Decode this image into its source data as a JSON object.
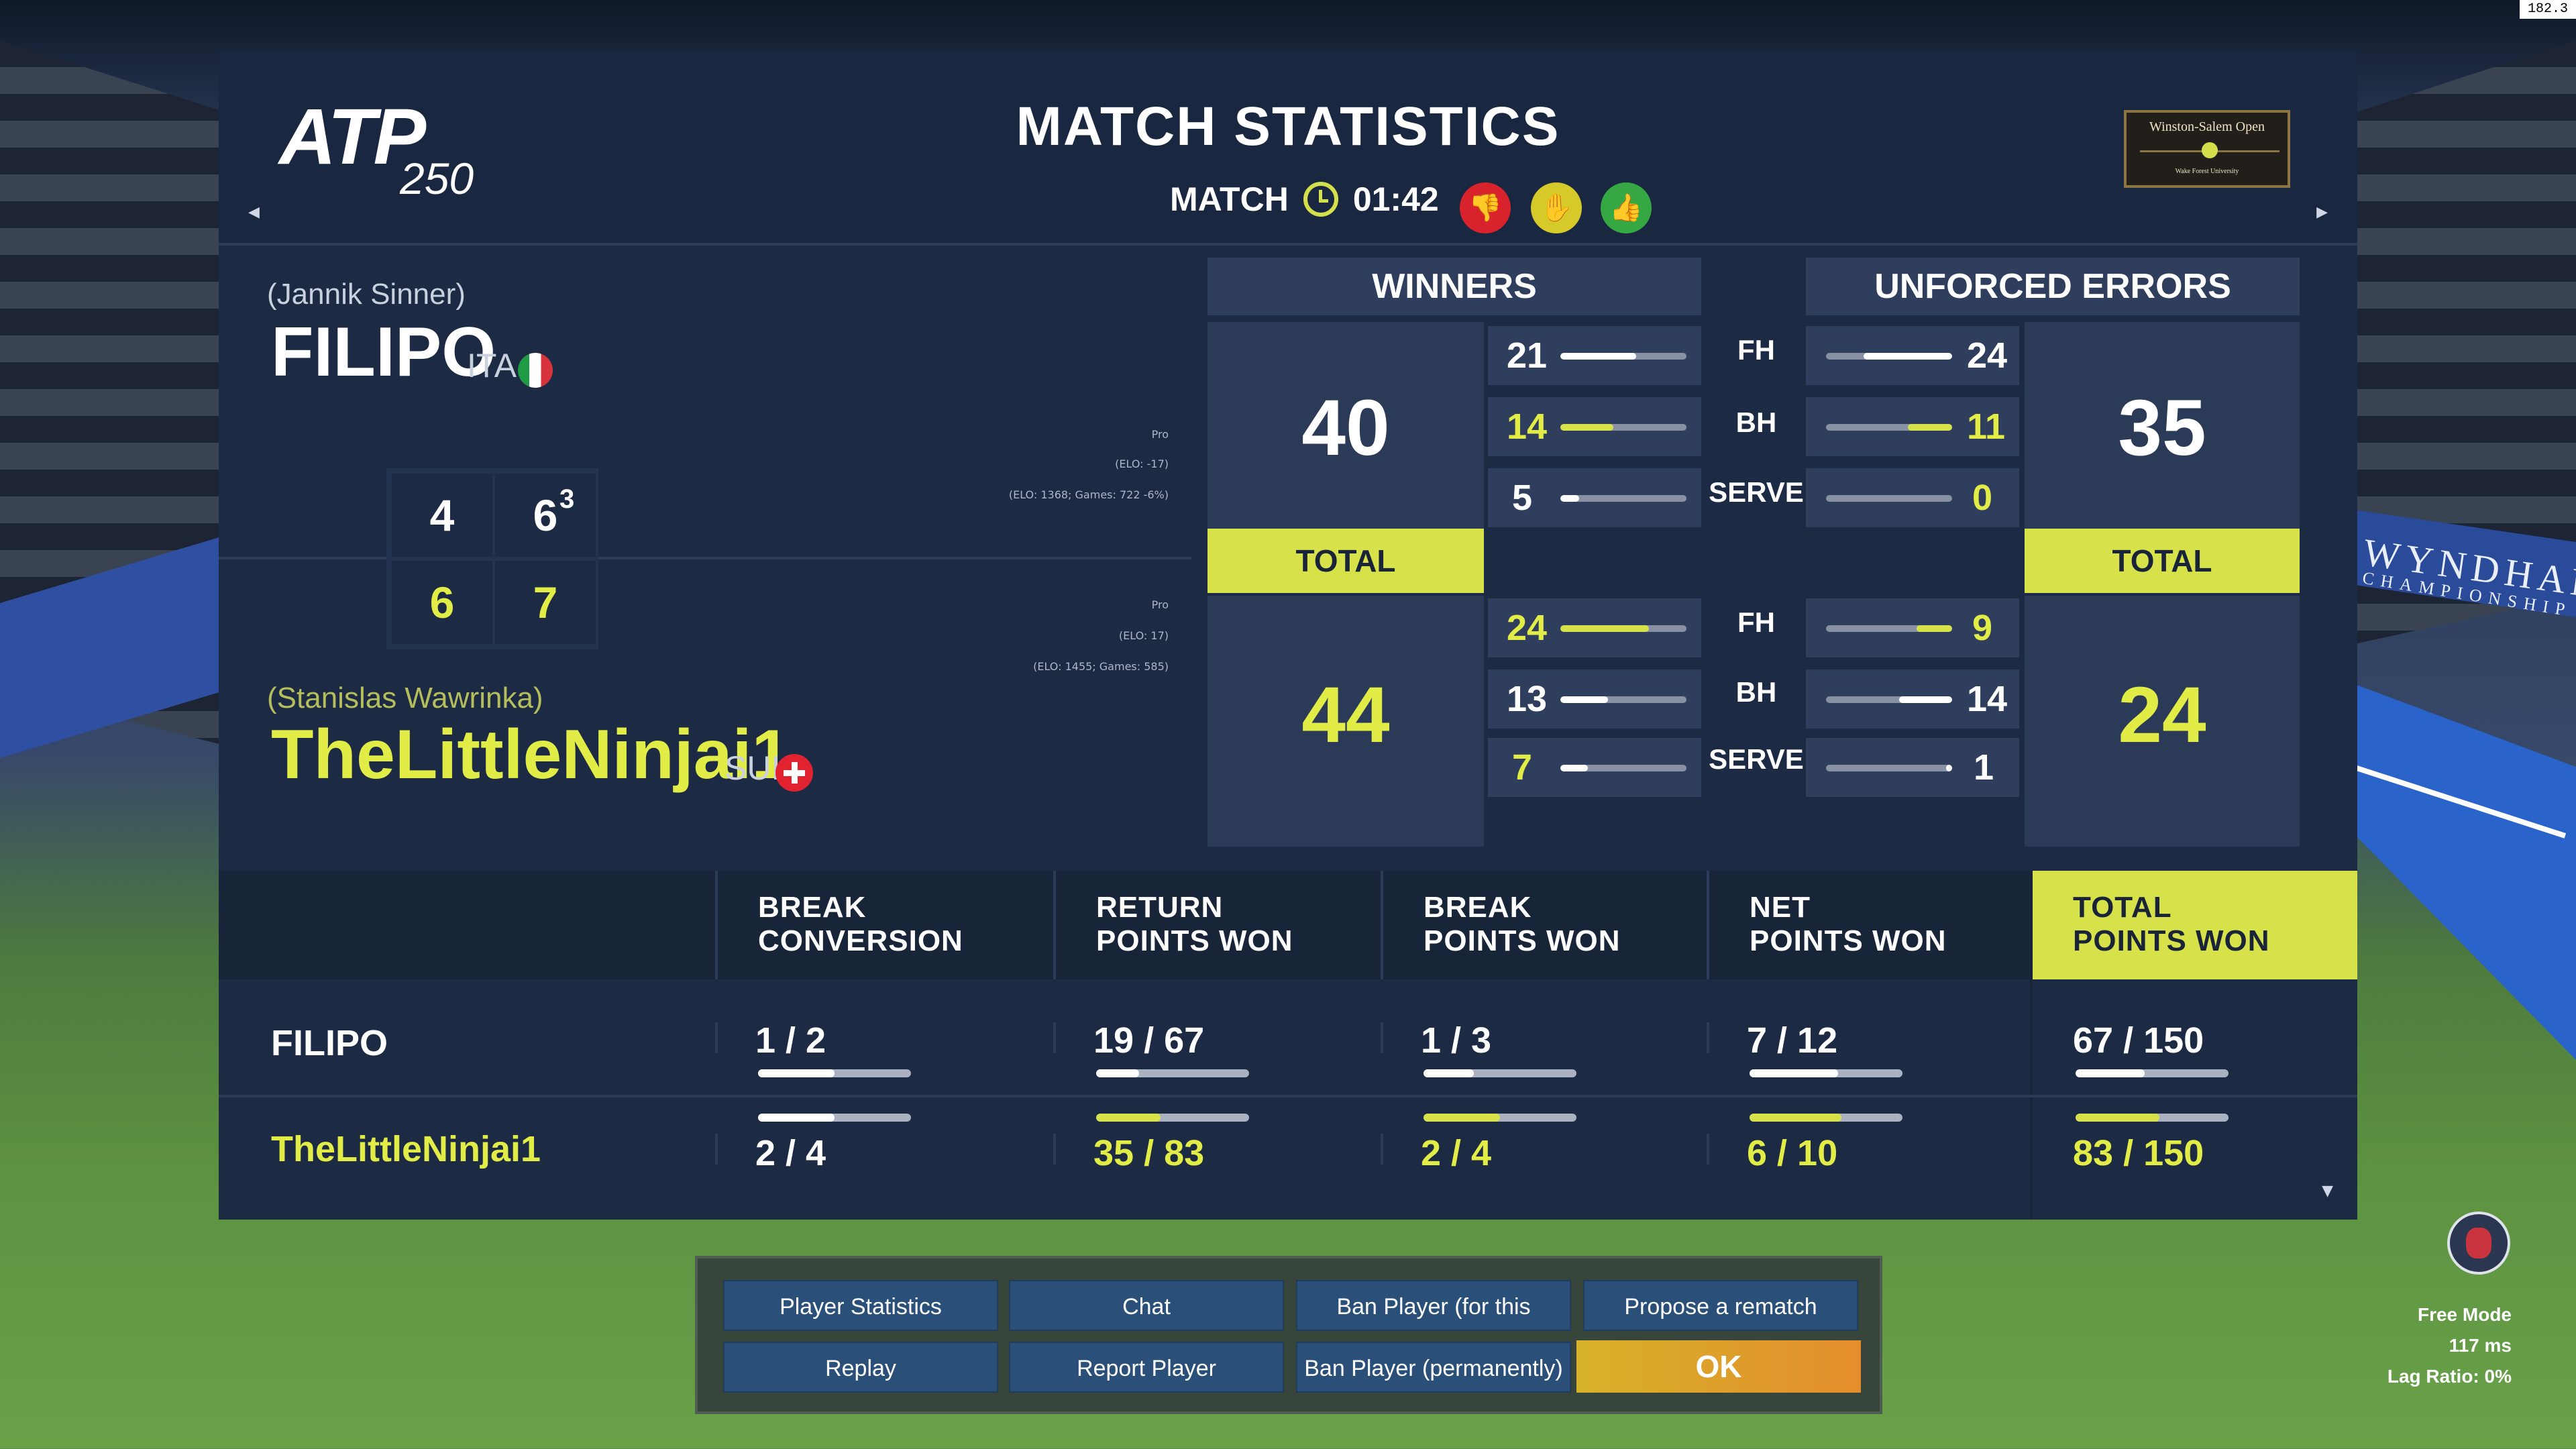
{
  "fps_overlay": "182.3",
  "background": {
    "sponsor": "WYNDHAM",
    "sponsor_sub": "CHAMPIONSHIP"
  },
  "header": {
    "logo_text": "ATP",
    "logo_tier": "250",
    "title": "MATCH STATISTICS",
    "match_label": "MATCH",
    "match_time": "01:42",
    "tournament_name": "Winston-Salem Open",
    "tournament_sub": "Wake Forest University"
  },
  "players": {
    "p1": {
      "real_name": "(Jannik Sinner)",
      "name": "FILIPO",
      "nationality": "ITA",
      "elo_level": "Pro",
      "elo_delta": "(ELO: -17)",
      "elo_detail": "(ELO: 1368; Games: 722 -6%)"
    },
    "p2": {
      "real_name": "(Stanislas Wawrinka)",
      "name": "TheLittleNinjai1",
      "nationality": "SUI",
      "elo_level": "Pro",
      "elo_delta": "(ELO: 17)",
      "elo_detail": "(ELO: 1455; Games: 585)"
    }
  },
  "score": {
    "p1_set1": "4",
    "p1_set2": "6",
    "p1_set2_tb": "3",
    "p2_set1": "6",
    "p2_set2": "7"
  },
  "stats": {
    "winners_label": "WINNERS",
    "unforced_label": "UNFORCED ERRORS",
    "total_label": "TOTAL",
    "cat_fh": "FH",
    "cat_bh": "BH",
    "cat_serve": "SERVE",
    "p1": {
      "winners_total": "40",
      "winners_fh": "21",
      "winners_bh": "14",
      "winners_serve": "5",
      "ue_total": "35",
      "ue_fh": "24",
      "ue_bh": "11",
      "ue_serve": "0",
      "winners_bars": [
        0.6,
        0.42,
        0.15
      ],
      "ue_bars": [
        0.7,
        0.35,
        0.0
      ]
    },
    "p2": {
      "winners_total": "44",
      "winners_fh": "24",
      "winners_bh": "13",
      "winners_serve": "7",
      "ue_total": "24",
      "ue_fh": "9",
      "ue_bh": "14",
      "ue_serve": "1",
      "winners_bars": [
        0.7,
        0.38,
        0.22
      ],
      "ue_bars": [
        0.28,
        0.42,
        0.05
      ]
    }
  },
  "table": {
    "headers": [
      [
        "BREAK",
        "CONVERSION"
      ],
      [
        "RETURN",
        "POINTS WON"
      ],
      [
        "BREAK",
        "POINTS WON"
      ],
      [
        "NET",
        "POINTS WON"
      ],
      [
        "TOTAL",
        "POINTS WON"
      ]
    ],
    "rows": [
      {
        "name": "FILIPO",
        "values": [
          "1 / 2",
          "19 / 67",
          "1 / 3",
          "7 / 12",
          "67 / 150"
        ],
        "fractions": [
          0.5,
          0.28,
          0.33,
          0.58,
          0.45
        ]
      },
      {
        "name": "TheLittleNinjai1",
        "values": [
          "2 / 4",
          "35 / 83",
          "2 / 4",
          "6 / 10",
          "83 / 150"
        ],
        "fractions": [
          0.5,
          0.42,
          0.5,
          0.6,
          0.55
        ]
      }
    ]
  },
  "buttons": {
    "player_statistics": "Player Statistics",
    "chat": "Chat",
    "ban_session": "Ban Player (for this session)",
    "propose_rematch": "Propose a rematch",
    "replay": "Replay",
    "report_player": "Report Player",
    "ban_permanent": "Ban Player (permanently)",
    "ok": "OK"
  },
  "status": {
    "mode": "Free Mode",
    "ping": "117 ms",
    "lag_ratio": "Lag Ratio: 0%"
  },
  "colors": {
    "accent_yellow": "#d7e24a",
    "player2_yellow": "#e2ec46",
    "panel_bg": "#1c2a44",
    "thumbs_down": "#d8232c",
    "neutral": "#d6c92a",
    "thumbs_up": "#35a743"
  }
}
